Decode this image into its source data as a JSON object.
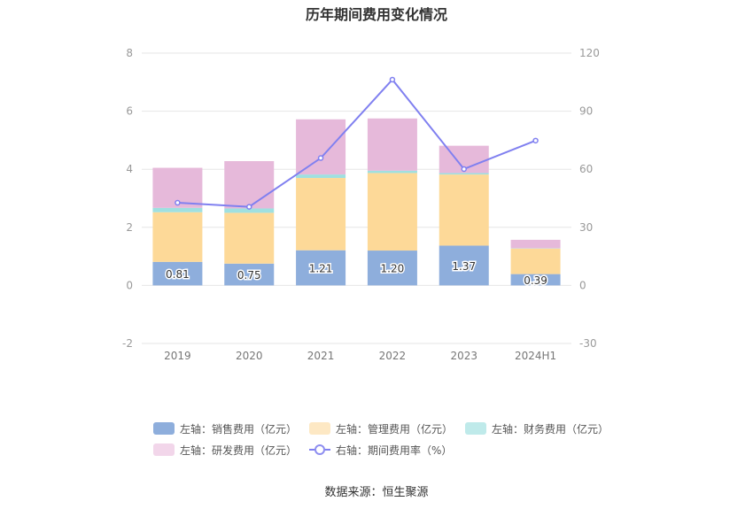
{
  "chart_data": {
    "type": "bar",
    "title": "历年期间费用变化情况",
    "categories": [
      "2019",
      "2020",
      "2021",
      "2022",
      "2023",
      "2024H1"
    ],
    "left_axis": {
      "ylim": [
        -2,
        8
      ],
      "ticks": [
        -2,
        0,
        2,
        4,
        6,
        8
      ]
    },
    "right_axis": {
      "ylim": [
        -30,
        120
      ],
      "ticks": [
        -30,
        0,
        30,
        60,
        90,
        120
      ]
    },
    "grid": true,
    "legend_position": "bottom",
    "series": [
      {
        "name": "左轴：销售费用（亿元）",
        "axis": "left",
        "kind": "bar",
        "color": "#8eaedc",
        "values": [
          0.81,
          0.75,
          1.21,
          1.2,
          1.37,
          0.39
        ],
        "data_labels": [
          "0.81",
          "0.75",
          "1.21",
          "1.20",
          "1.37",
          "0.39"
        ]
      },
      {
        "name": "左轴：管理费用（亿元）",
        "axis": "left",
        "kind": "bar",
        "color": "#fdd998",
        "values": [
          1.71,
          1.75,
          2.49,
          2.67,
          2.45,
          0.88
        ]
      },
      {
        "name": "左轴：财务费用（亿元）",
        "axis": "left",
        "kind": "bar",
        "color": "#9fe0e0",
        "values": [
          0.15,
          0.15,
          0.12,
          0.08,
          0.05,
          0.01
        ]
      },
      {
        "name": "左轴：研发费用（亿元）",
        "axis": "left",
        "kind": "bar",
        "color": "#e6b9da",
        "values": [
          1.38,
          1.63,
          1.9,
          1.8,
          0.94,
          0.29
        ]
      },
      {
        "name": "右轴：期间费用率（%）",
        "axis": "right",
        "kind": "line",
        "color": "#8080f0",
        "values": [
          42.7,
          40.6,
          65.8,
          106.3,
          60.1,
          74.8
        ]
      }
    ]
  },
  "legend_swatch_colors": [
    "#8eaedc",
    "#fde8c4",
    "#bfeaea",
    "#f2d6ea"
  ],
  "source": "数据来源：恒生聚源"
}
